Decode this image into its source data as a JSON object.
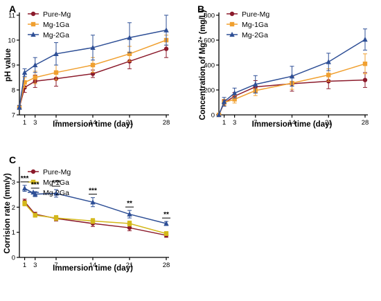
{
  "colors": {
    "Pure-Mg": "#8b1a2b",
    "Mg-1Ga": "#f0a030",
    "Mg-1Ga-C": "#d4b81a",
    "Mg-2Ga": "#2e4f96",
    "axis": "#000000"
  },
  "chart_data": [
    {
      "panel": "A",
      "type": "line",
      "xlabel": "Immersion time (day)",
      "ylabel": "pH value",
      "x": [
        0,
        1,
        3,
        7,
        14,
        21,
        28
      ],
      "xticks": [
        "1",
        "3",
        "7",
        "14",
        "21",
        "28"
      ],
      "xtick_values": [
        1,
        3,
        7,
        14,
        21,
        28
      ],
      "ylim": [
        7,
        11
      ],
      "yticks": [
        7,
        8,
        9,
        10,
        11
      ],
      "legend": "top-left",
      "series": [
        {
          "name": "Pure-Mg",
          "color_key": "Pure-Mg",
          "marker": "circle",
          "values": [
            7.3,
            8.1,
            8.35,
            8.45,
            8.65,
            9.15,
            9.65
          ],
          "errors": [
            0.08,
            0.2,
            0.25,
            0.3,
            0.15,
            0.3,
            0.35
          ]
        },
        {
          "name": "Mg-1Ga",
          "color_key": "Mg-1Ga",
          "marker": "square",
          "values": [
            7.3,
            8.3,
            8.5,
            8.7,
            9.0,
            9.45,
            10.0
          ],
          "errors": [
            0.08,
            0.2,
            0.25,
            0.3,
            0.3,
            0.3,
            0.2
          ]
        },
        {
          "name": "Mg-2Ga",
          "color_key": "Mg-2Ga",
          "marker": "triangle",
          "values": [
            7.3,
            8.7,
            9.0,
            9.45,
            9.7,
            10.1,
            10.4
          ],
          "errors": [
            0.08,
            0.15,
            0.3,
            0.45,
            0.5,
            0.6,
            0.6
          ]
        }
      ]
    },
    {
      "panel": "B",
      "type": "line",
      "xlabel": "Immersion time (day)",
      "ylabel_main": "Concentration of Mg",
      "ylabel_sup": "2+",
      "ylabel_unit": " (mg/L)",
      "x": [
        0,
        1,
        3,
        7,
        14,
        21,
        28
      ],
      "xticks": [
        "1",
        "3",
        "7",
        "14",
        "21",
        "28"
      ],
      "xtick_values": [
        1,
        3,
        7,
        14,
        21,
        28
      ],
      "ylim": [
        0,
        800
      ],
      "yticks": [
        0,
        200,
        400,
        600,
        800
      ],
      "legend": "top-left",
      "series": [
        {
          "name": "Pure-Mg",
          "color_key": "Pure-Mg",
          "marker": "circle",
          "values": [
            0,
            95,
            150,
            225,
            250,
            270,
            280
          ],
          "errors": [
            0,
            25,
            30,
            50,
            60,
            60,
            60
          ]
        },
        {
          "name": "Mg-1Ga",
          "color_key": "Mg-1Ga",
          "marker": "square",
          "values": [
            0,
            100,
            125,
            195,
            255,
            320,
            410
          ],
          "errors": [
            0,
            25,
            30,
            40,
            50,
            50,
            80
          ]
        },
        {
          "name": "Mg-2Ga",
          "color_key": "Mg-2Ga",
          "marker": "triangle",
          "values": [
            0,
            105,
            175,
            245,
            310,
            425,
            605
          ],
          "errors": [
            0,
            35,
            40,
            70,
            80,
            70,
            85
          ]
        }
      ]
    },
    {
      "panel": "C",
      "type": "line",
      "xlabel": "Immersion time (day)",
      "ylabel": "Corrision rate (mm/y)",
      "x": [
        1,
        3,
        7,
        14,
        21,
        28
      ],
      "xticks": [
        "1",
        "3",
        "7",
        "14",
        "21",
        "28"
      ],
      "xtick_values": [
        1,
        3,
        7,
        14,
        21,
        28
      ],
      "ylim": [
        0,
        3.5
      ],
      "yticks": [
        0,
        1,
        2,
        3
      ],
      "legend": "top-left",
      "significance": [
        {
          "x": 1,
          "label": "***"
        },
        {
          "x": 3,
          "label": "***"
        },
        {
          "x": 7,
          "label": "***"
        },
        {
          "x": 14,
          "label": "***"
        },
        {
          "x": 21,
          "label": "**"
        },
        {
          "x": 28,
          "label": "**"
        }
      ],
      "series": [
        {
          "name": "Pure-Mg",
          "color_key": "Pure-Mg",
          "marker": "circle",
          "values": [
            2.22,
            1.72,
            1.55,
            1.35,
            1.18,
            0.88
          ],
          "errors": [
            0.1,
            0.08,
            0.1,
            0.12,
            0.12,
            0.08
          ]
        },
        {
          "name": "Mg-1Ga",
          "color_key": "Mg-1Ga-C",
          "marker": "square",
          "values": [
            2.15,
            1.68,
            1.57,
            1.45,
            1.35,
            0.95
          ],
          "errors": [
            0.1,
            0.08,
            0.1,
            0.1,
            0.1,
            0.08
          ]
        },
        {
          "name": "Mg-2Ga",
          "color_key": "Mg-2Ga",
          "marker": "triangle",
          "values": [
            2.75,
            2.52,
            2.55,
            2.2,
            1.72,
            1.35
          ],
          "errors": [
            0.12,
            0.1,
            0.15,
            0.18,
            0.15,
            0.08
          ]
        }
      ]
    }
  ]
}
